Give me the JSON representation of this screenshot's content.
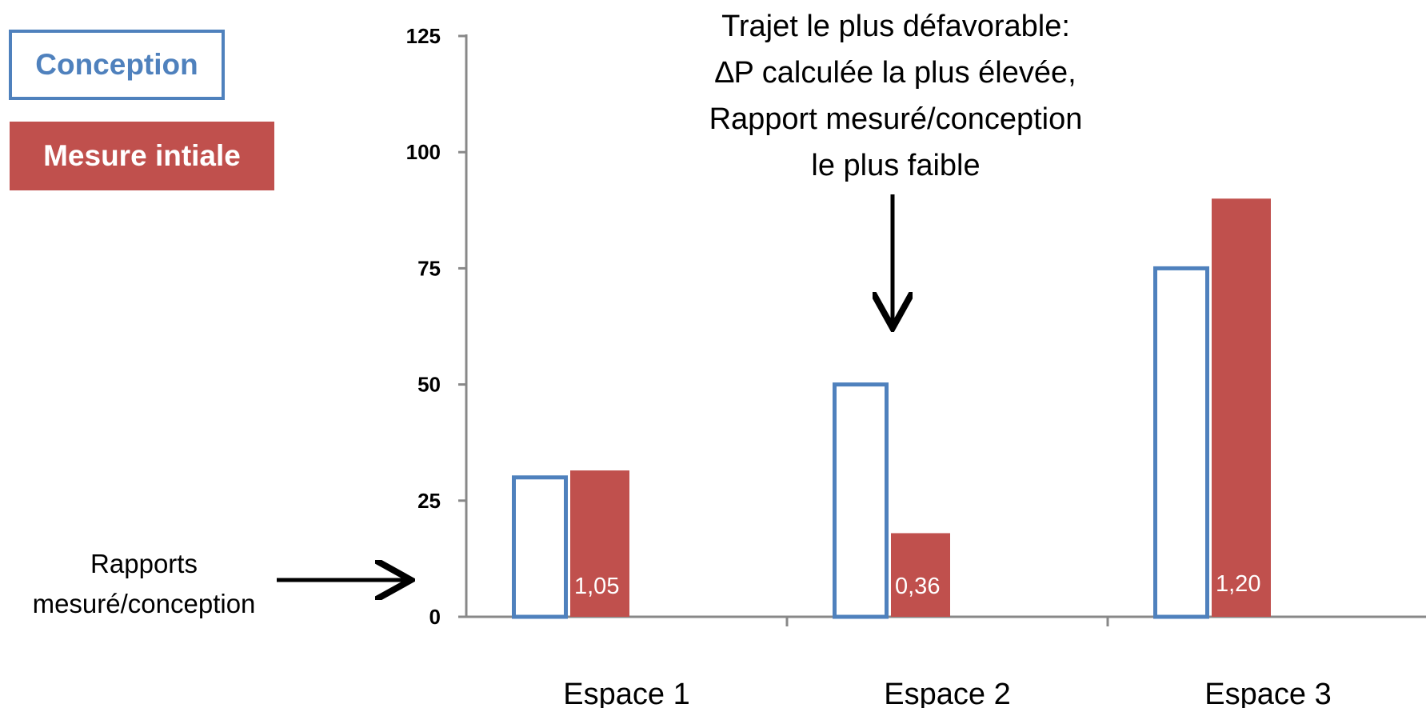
{
  "legend": {
    "conception_label": "Conception",
    "mesure_label": "Mesure intiale",
    "conception_color": "#4f81bd",
    "mesure_color": "#c0504d"
  },
  "annotations": {
    "top_lines": [
      "Trajet le plus défavorable:",
      "∆P calculée la plus élevée,",
      "Rapport mesuré/conception",
      "le plus faible"
    ],
    "side_lines": [
      "Rapports",
      "mesuré/conception"
    ]
  },
  "chart_data": {
    "type": "bar",
    "categories": [
      "Espace 1",
      "Espace 2",
      "Espace 3"
    ],
    "series": [
      {
        "name": "Conception",
        "values": [
          30,
          50,
          75
        ],
        "style": "outline",
        "color": "#4f81bd"
      },
      {
        "name": "Mesure intiale",
        "values": [
          31.5,
          18,
          90
        ],
        "style": "filled",
        "color": "#c0504d"
      }
    ],
    "data_labels": [
      "1,05",
      "0,36",
      "1,20"
    ],
    "yticks": [
      0,
      25,
      50,
      75,
      100,
      125
    ],
    "ylim": [
      0,
      125
    ],
    "grid": false,
    "legend_position": "top-left"
  }
}
